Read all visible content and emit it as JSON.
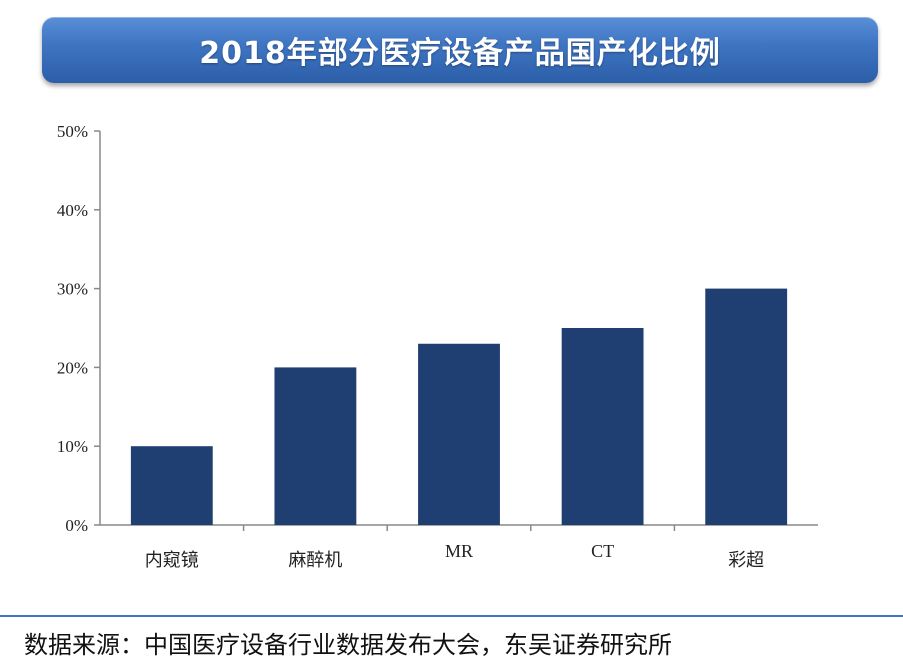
{
  "title": "2018年部分医疗设备产品国产化比例",
  "source": "数据来源：中国医疗设备行业数据发布大会，东吴证券研究所",
  "colors": {
    "bar": "#1f3f73",
    "banner": "#3f76c4",
    "axis": "#888888"
  },
  "chart_data": {
    "type": "bar",
    "categories": [
      "内窥镜",
      "麻醉机",
      "MR",
      "CT",
      "彩超"
    ],
    "values": [
      10,
      20,
      23,
      25,
      30
    ],
    "ylim": [
      0,
      50
    ],
    "yticks": [
      0,
      10,
      20,
      30,
      40,
      50
    ],
    "ytick_labels": [
      "0%",
      "10%",
      "20%",
      "30%",
      "40%",
      "50%"
    ],
    "grid": false
  }
}
